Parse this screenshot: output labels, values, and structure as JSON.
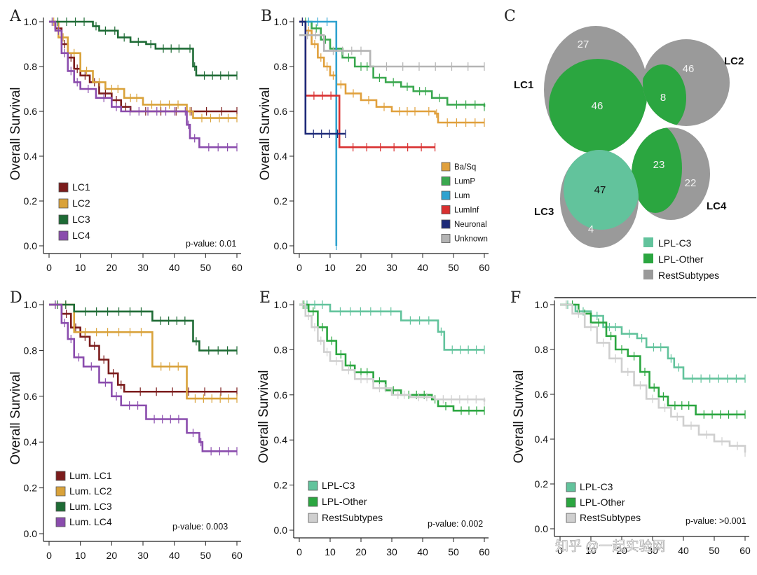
{
  "watermark": "知乎 @一起实验网",
  "colors": {
    "lc1": "#7b1c1c",
    "lc2": "#d9a23a",
    "lc3": "#1e6b35",
    "lc4": "#8a4cad",
    "basq": "#e0a03c",
    "lump": "#3aa84f",
    "lum": "#2fa2cf",
    "luminf": "#d93030",
    "neuronal": "#1e2a78",
    "unknown": "#b4b4b4",
    "lplc3": "#62c39c",
    "lplother": "#2ba640",
    "rest": "#9a9a9a",
    "rest_light": "#cfcfcf"
  },
  "chart_data": [
    {
      "panel": "A",
      "type": "line",
      "ylabel": "Overall Survival",
      "xlim": [
        0,
        60
      ],
      "ylim": [
        0,
        1
      ],
      "x_ticks": [
        "0",
        "10",
        "20",
        "30",
        "40",
        "50",
        "60"
      ],
      "y_ticks": [
        "0.0",
        "0.2",
        "0.4",
        "0.6",
        "0.8",
        "1.0"
      ],
      "pvalue": "p-value: 0.01",
      "legend": [
        "LC1",
        "LC2",
        "LC3",
        "LC4"
      ],
      "series": [
        {
          "name": "LC1",
          "color": "lc1",
          "points": [
            [
              0,
              1
            ],
            [
              2,
              0.97
            ],
            [
              4,
              0.9
            ],
            [
              6,
              0.84
            ],
            [
              8,
              0.79
            ],
            [
              10,
              0.76
            ],
            [
              13,
              0.73
            ],
            [
              16,
              0.68
            ],
            [
              20,
              0.65
            ],
            [
              23,
              0.62
            ],
            [
              26,
              0.6
            ],
            [
              60,
              0.6
            ]
          ]
        },
        {
          "name": "LC2",
          "color": "lc2",
          "points": [
            [
              0,
              1
            ],
            [
              3,
              0.93
            ],
            [
              6,
              0.86
            ],
            [
              10,
              0.78
            ],
            [
              14,
              0.73
            ],
            [
              18,
              0.7
            ],
            [
              24,
              0.66
            ],
            [
              30,
              0.63
            ],
            [
              44,
              0.6
            ],
            [
              46,
              0.57
            ],
            [
              60,
              0.57
            ]
          ]
        },
        {
          "name": "LC3",
          "color": "lc3",
          "points": [
            [
              0,
              1
            ],
            [
              14,
              0.98
            ],
            [
              16,
              0.96
            ],
            [
              20,
              0.96
            ],
            [
              22,
              0.93
            ],
            [
              26,
              0.91
            ],
            [
              31,
              0.9
            ],
            [
              34,
              0.88
            ],
            [
              44,
              0.88
            ],
            [
              46,
              0.8
            ],
            [
              47,
              0.76
            ],
            [
              60,
              0.76
            ]
          ]
        },
        {
          "name": "LC4",
          "color": "lc4",
          "points": [
            [
              0,
              1
            ],
            [
              2,
              0.96
            ],
            [
              4,
              0.86
            ],
            [
              6,
              0.78
            ],
            [
              8,
              0.73
            ],
            [
              10,
              0.7
            ],
            [
              15,
              0.66
            ],
            [
              20,
              0.62
            ],
            [
              23,
              0.6
            ],
            [
              43,
              0.6
            ],
            [
              44,
              0.54
            ],
            [
              45,
              0.48
            ],
            [
              48,
              0.44
            ],
            [
              60,
              0.44
            ]
          ]
        }
      ]
    },
    {
      "panel": "B",
      "type": "line",
      "ylabel": "Overall Survival",
      "xlim": [
        0,
        60
      ],
      "ylim": [
        0,
        1
      ],
      "x_ticks": [
        "0",
        "10",
        "20",
        "30",
        "40",
        "50",
        "60"
      ],
      "y_ticks": [
        "0.0",
        "0.2",
        "0.4",
        "0.6",
        "0.8",
        "1.0"
      ],
      "legend": [
        "Ba/Sq",
        "LumP",
        "Lum",
        "LumInf",
        "Neuronal",
        "Unknown"
      ],
      "series": [
        {
          "name": "Ba/Sq",
          "color": "basq",
          "points": [
            [
              0,
              1
            ],
            [
              2,
              0.96
            ],
            [
              4,
              0.9
            ],
            [
              6,
              0.84
            ],
            [
              8,
              0.8
            ],
            [
              10,
              0.76
            ],
            [
              12,
              0.72
            ],
            [
              15,
              0.68
            ],
            [
              20,
              0.65
            ],
            [
              25,
              0.62
            ],
            [
              30,
              0.6
            ],
            [
              40,
              0.6
            ],
            [
              44,
              0.59
            ],
            [
              45,
              0.55
            ],
            [
              60,
              0.55
            ]
          ]
        },
        {
          "name": "LumP",
          "color": "lump",
          "points": [
            [
              0,
              1
            ],
            [
              4,
              0.97
            ],
            [
              7,
              0.92
            ],
            [
              10,
              0.88
            ],
            [
              14,
              0.84
            ],
            [
              18,
              0.8
            ],
            [
              24,
              0.75
            ],
            [
              28,
              0.73
            ],
            [
              33,
              0.71
            ],
            [
              37,
              0.69
            ],
            [
              43,
              0.66
            ],
            [
              48,
              0.63
            ],
            [
              60,
              0.62
            ]
          ]
        },
        {
          "name": "Lum",
          "color": "lum",
          "points": [
            [
              0,
              1
            ],
            [
              12,
              1
            ],
            [
              12,
              0
            ]
          ]
        },
        {
          "name": "LumInf",
          "color": "luminf",
          "points": [
            [
              0,
              1
            ],
            [
              2,
              0.67
            ],
            [
              13,
              0.67
            ],
            [
              13,
              0.44
            ],
            [
              44,
              0.44
            ]
          ]
        },
        {
          "name": "Neuronal",
          "color": "neuronal",
          "points": [
            [
              0,
              1
            ],
            [
              2,
              1
            ],
            [
              2,
              0.5
            ],
            [
              15,
              0.5
            ]
          ]
        },
        {
          "name": "Unknown",
          "color": "unknown",
          "points": [
            [
              0,
              0.94
            ],
            [
              8,
              0.94
            ],
            [
              8,
              0.87
            ],
            [
              23,
              0.87
            ],
            [
              23,
              0.8
            ],
            [
              60,
              0.8
            ]
          ]
        }
      ]
    },
    {
      "panel": "C",
      "type": "venn",
      "groups": [
        {
          "label": "LC1",
          "rest": "27",
          "lpl_other": "46"
        },
        {
          "label": "LC2",
          "rest": "46",
          "lpl_other": "8"
        },
        {
          "label": "LC3",
          "lpl_c3": "47",
          "rest": "4"
        },
        {
          "label": "LC4",
          "lpl_other": "23",
          "rest": "22"
        }
      ],
      "legend": [
        "LPL-C3",
        "LPL-Other",
        "RestSubtypes"
      ]
    },
    {
      "panel": "D",
      "type": "line",
      "ylabel": "Overall Survival",
      "xlim": [
        0,
        60
      ],
      "ylim": [
        0,
        1
      ],
      "x_ticks": [
        "0",
        "10",
        "20",
        "30",
        "40",
        "50",
        "60"
      ],
      "y_ticks": [
        "0.0",
        "0.2",
        "0.4",
        "0.6",
        "0.8",
        "1.0"
      ],
      "pvalue": "p-value: 0.003",
      "legend": [
        "Lum. LC1",
        "Lum. LC2",
        "Lum. LC3",
        "Lum. LC4"
      ],
      "series": [
        {
          "name": "Lum. LC1",
          "color": "lc1",
          "points": [
            [
              0,
              1
            ],
            [
              4,
              0.96
            ],
            [
              7,
              0.9
            ],
            [
              10,
              0.86
            ],
            [
              13,
              0.82
            ],
            [
              16,
              0.76
            ],
            [
              19,
              0.7
            ],
            [
              22,
              0.65
            ],
            [
              24,
              0.62
            ],
            [
              60,
              0.62
            ]
          ]
        },
        {
          "name": "Lum. LC2",
          "color": "lc2",
          "points": [
            [
              0,
              1
            ],
            [
              8,
              1
            ],
            [
              8,
              0.88
            ],
            [
              33,
              0.88
            ],
            [
              33,
              0.73
            ],
            [
              44,
              0.73
            ],
            [
              44,
              0.59
            ],
            [
              60,
              0.59
            ]
          ]
        },
        {
          "name": "Lum. LC3",
          "color": "lc3",
          "points": [
            [
              0,
              1
            ],
            [
              8,
              1
            ],
            [
              8,
              0.97
            ],
            [
              33,
              0.97
            ],
            [
              33,
              0.93
            ],
            [
              46,
              0.93
            ],
            [
              46,
              0.84
            ],
            [
              48,
              0.8
            ],
            [
              60,
              0.8
            ]
          ]
        },
        {
          "name": "Lum. LC4",
          "color": "lc4",
          "points": [
            [
              0,
              1
            ],
            [
              4,
              0.92
            ],
            [
              6,
              0.85
            ],
            [
              8,
              0.77
            ],
            [
              11,
              0.73
            ],
            [
              16,
              0.66
            ],
            [
              20,
              0.6
            ],
            [
              23,
              0.56
            ],
            [
              31,
              0.5
            ],
            [
              44,
              0.44
            ],
            [
              48,
              0.4
            ],
            [
              49,
              0.36
            ],
            [
              60,
              0.36
            ]
          ]
        }
      ]
    },
    {
      "panel": "E",
      "type": "line",
      "ylabel": "Overall Survival",
      "xlim": [
        0,
        60
      ],
      "ylim": [
        0,
        1
      ],
      "x_ticks": [
        "0",
        "10",
        "20",
        "30",
        "40",
        "50",
        "60"
      ],
      "y_ticks": [
        "0.0",
        "0.2",
        "0.4",
        "0.6",
        "0.8",
        "1.0"
      ],
      "pvalue": "p-value: 0.002",
      "legend": [
        "LPL-C3",
        "LPL-Other",
        "RestSubtypes"
      ],
      "series": [
        {
          "name": "LPL-C3",
          "color": "lplc3",
          "points": [
            [
              0,
              1
            ],
            [
              10,
              1
            ],
            [
              10,
              0.97
            ],
            [
              33,
              0.97
            ],
            [
              33,
              0.93
            ],
            [
              45,
              0.93
            ],
            [
              45,
              0.88
            ],
            [
              47,
              0.8
            ],
            [
              60,
              0.8
            ]
          ]
        },
        {
          "name": "LPL-Other",
          "color": "lplother",
          "points": [
            [
              0,
              1
            ],
            [
              3,
              0.97
            ],
            [
              6,
              0.9
            ],
            [
              9,
              0.84
            ],
            [
              12,
              0.78
            ],
            [
              15,
              0.73
            ],
            [
              18,
              0.7
            ],
            [
              24,
              0.66
            ],
            [
              28,
              0.62
            ],
            [
              33,
              0.6
            ],
            [
              43,
              0.58
            ],
            [
              45,
              0.55
            ],
            [
              50,
              0.53
            ],
            [
              60,
              0.53
            ]
          ]
        },
        {
          "name": "RestSubtypes",
          "color": "rest_light",
          "points": [
            [
              0,
              1
            ],
            [
              2,
              0.95
            ],
            [
              4,
              0.9
            ],
            [
              6,
              0.84
            ],
            [
              8,
              0.79
            ],
            [
              10,
              0.75
            ],
            [
              14,
              0.71
            ],
            [
              18,
              0.67
            ],
            [
              24,
              0.63
            ],
            [
              30,
              0.6
            ],
            [
              36,
              0.59
            ],
            [
              44,
              0.58
            ],
            [
              60,
              0.57
            ]
          ]
        }
      ]
    },
    {
      "panel": "F",
      "type": "line",
      "ylabel": "Overall Survival",
      "xlim": [
        0,
        60
      ],
      "ylim": [
        0,
        1
      ],
      "x_ticks": [
        "0",
        "10",
        "20",
        "30",
        "40",
        "50",
        "60"
      ],
      "y_ticks": [
        "0.0",
        "0.2",
        "0.4",
        "0.6",
        "0.8",
        "1.0"
      ],
      "pvalue": "p-value: >0.001",
      "legend": [
        "LPL-C3",
        "LPL-Other",
        "RestSubtypes"
      ],
      "series": [
        {
          "name": "LPL-C3",
          "color": "lplc3",
          "points": [
            [
              0,
              1
            ],
            [
              5,
              0.97
            ],
            [
              10,
              0.95
            ],
            [
              14,
              0.9
            ],
            [
              20,
              0.87
            ],
            [
              25,
              0.85
            ],
            [
              28,
              0.81
            ],
            [
              35,
              0.81
            ],
            [
              35,
              0.76
            ],
            [
              37,
              0.72
            ],
            [
              40,
              0.67
            ],
            [
              60,
              0.67
            ]
          ]
        },
        {
          "name": "LPL-Other",
          "color": "lplother",
          "points": [
            [
              0,
              1
            ],
            [
              6,
              0.96
            ],
            [
              10,
              0.92
            ],
            [
              15,
              0.86
            ],
            [
              18,
              0.8
            ],
            [
              22,
              0.77
            ],
            [
              26,
              0.7
            ],
            [
              29,
              0.63
            ],
            [
              32,
              0.59
            ],
            [
              35,
              0.55
            ],
            [
              44,
              0.55
            ],
            [
              44,
              0.51
            ],
            [
              60,
              0.51
            ]
          ]
        },
        {
          "name": "RestSubtypes",
          "color": "rest_light",
          "points": [
            [
              0,
              1
            ],
            [
              4,
              0.96
            ],
            [
              8,
              0.9
            ],
            [
              12,
              0.83
            ],
            [
              16,
              0.76
            ],
            [
              20,
              0.7
            ],
            [
              24,
              0.64
            ],
            [
              28,
              0.58
            ],
            [
              32,
              0.54
            ],
            [
              36,
              0.5
            ],
            [
              40,
              0.46
            ],
            [
              45,
              0.42
            ],
            [
              50,
              0.39
            ],
            [
              55,
              0.37
            ],
            [
              60,
              0.34
            ]
          ]
        }
      ]
    }
  ]
}
